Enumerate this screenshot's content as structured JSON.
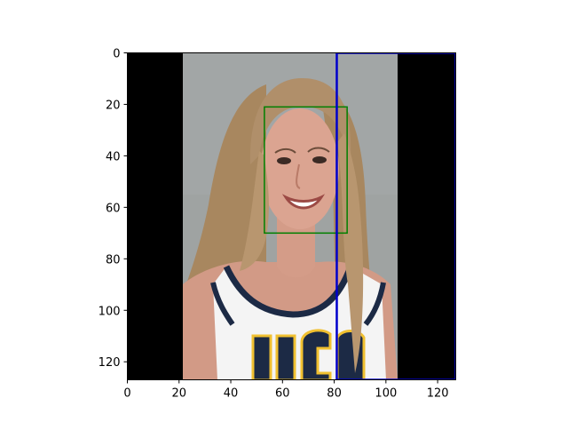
{
  "image_display": {
    "x_range": [
      0,
      127
    ],
    "y_range": [
      0,
      127
    ],
    "y_axis_direction": "down",
    "x_ticks": [
      "0",
      "20",
      "40",
      "60",
      "80",
      "100",
      "120"
    ],
    "y_ticks": [
      "0",
      "20",
      "40",
      "60",
      "80",
      "100",
      "120"
    ],
    "photo_columns": [
      21,
      105
    ],
    "boxes": [
      {
        "color": "#008000",
        "x": [
          53,
          85
        ],
        "y": [
          21,
          70
        ]
      },
      {
        "color": "#0000cc",
        "x": [
          81,
          127
        ],
        "y": [
          0,
          127
        ]
      }
    ],
    "colors": {
      "padding": "#000000",
      "backdrop": "#9fa3a2",
      "hair": "#b08f6a",
      "skin": "#d9a08e",
      "jersey": "#f4f4f4",
      "trim": "#1c2a45",
      "lettering": "#f0c030"
    }
  }
}
